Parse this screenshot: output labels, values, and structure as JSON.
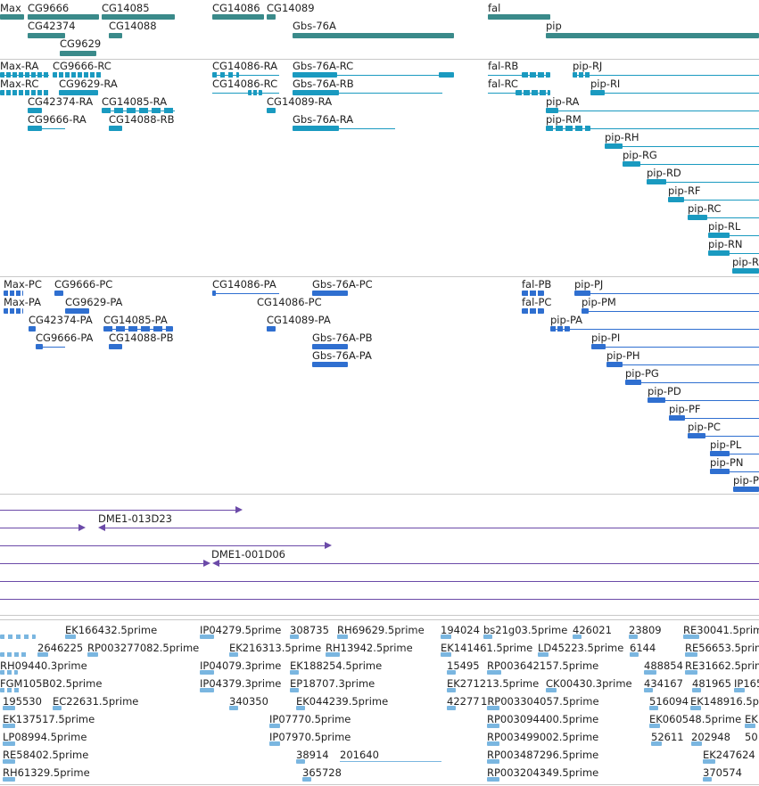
{
  "colors": {
    "gene": "#3a8a8a",
    "transcript": "#1a9ac0",
    "protein": "#2f6fd0",
    "clone": "#6b4aa8",
    "est": "#7ab6e0",
    "separator": "#c8c8c8"
  },
  "genes": {
    "labels": [
      {
        "t": "Max"
      },
      {
        "t": "CG9666"
      },
      {
        "t": "CG14085"
      },
      {
        "t": "CG14086"
      },
      {
        "t": "CG14089"
      },
      {
        "t": "fal"
      },
      {
        "t": "CG42374"
      },
      {
        "t": "CG14088"
      },
      {
        "t": "Gbs-76A"
      },
      {
        "t": "pip"
      },
      {
        "t": "CG9629"
      }
    ]
  },
  "transcripts": {
    "labels": [
      "Max-RA",
      "CG9666-RC",
      "CG14086-RA",
      "Gbs-76A-RC",
      "fal-RB",
      "pip-RJ",
      "Max-RC",
      "CG9629-RA",
      "CG14086-RC",
      "Gbs-76A-RB",
      "fal-RC",
      "pip-RI",
      "CG42374-RA",
      "CG14085-RA",
      "CG14089-RA",
      "pip-RA",
      "CG9666-RA",
      "CG14088-RB",
      "Gbs-76A-RA",
      "pip-RM",
      "pip-RH",
      "pip-RG",
      "pip-RD",
      "pip-RF",
      "pip-RC",
      "pip-RL",
      "pip-RN",
      "pip-R"
    ]
  },
  "proteins": {
    "labels": [
      "Max-PC",
      "CG9666-PC",
      "CG14086-PA",
      "Gbs-76A-PC",
      "fal-PB",
      "pip-PJ",
      "Max-PA",
      "CG9629-PA",
      "CG14086-PC",
      "fal-PC",
      "pip-PM",
      "CG42374-PA",
      "CG14085-PA",
      "CG14089-PA",
      "pip-PA",
      "CG9666-PA",
      "CG14088-PB",
      "Gbs-76A-PB",
      "pip-PI",
      "Gbs-76A-PA",
      "pip-PH",
      "pip-PG",
      "pip-PD",
      "pip-PF",
      "pip-PC",
      "pip-PL",
      "pip-PN",
      "pip-P"
    ]
  },
  "clones": {
    "labels": [
      "DME1-013D23",
      "DME1-001D06"
    ]
  },
  "ests": {
    "labels": [
      "EK166432.5prime",
      "IP04279.5prime",
      "308735",
      "RH69629.5prime",
      "194024",
      "bs21g03.5prime",
      "426021",
      "23809",
      "RE30041.5prim",
      "2646225",
      "RP003277082.5prime",
      "EK216313.5prime",
      "RH13942.5prime",
      "EK141461.5prime",
      "LD45223.5prime",
      "6144",
      "RE56653.5prim",
      "RH09440.3prime",
      "IP04079.3prime",
      "EK188254.5prime",
      "15495",
      "RP003642157.5prime",
      "488854",
      "RE31662.5prim",
      "FGM105B02.5prime",
      "IP04379.3prime",
      "EP18707.3prime",
      "EK271213.5prime",
      "CK00430.3prime",
      "434167",
      "481965",
      "IP165",
      "195530",
      "EC22631.5prime",
      "340350",
      "EK044239.5prime",
      "42277",
      "1RP003304057.5prime",
      "516094",
      "EK148916.5p",
      "EK137517.5prime",
      "IP07770.5prime",
      "RP003094400.5prime",
      "EK060548.5prime",
      "EK",
      "LP08994.5prime",
      "IP07970.5prime",
      "RP003499002.5prime",
      "52611",
      "202948",
      "50",
      "RE58402.5prime",
      "38914",
      "201640",
      "RP003487296.5prime",
      "EK247624",
      "RH61329.5prime",
      "365728",
      "RP003204349.5prime",
      "370574"
    ]
  }
}
